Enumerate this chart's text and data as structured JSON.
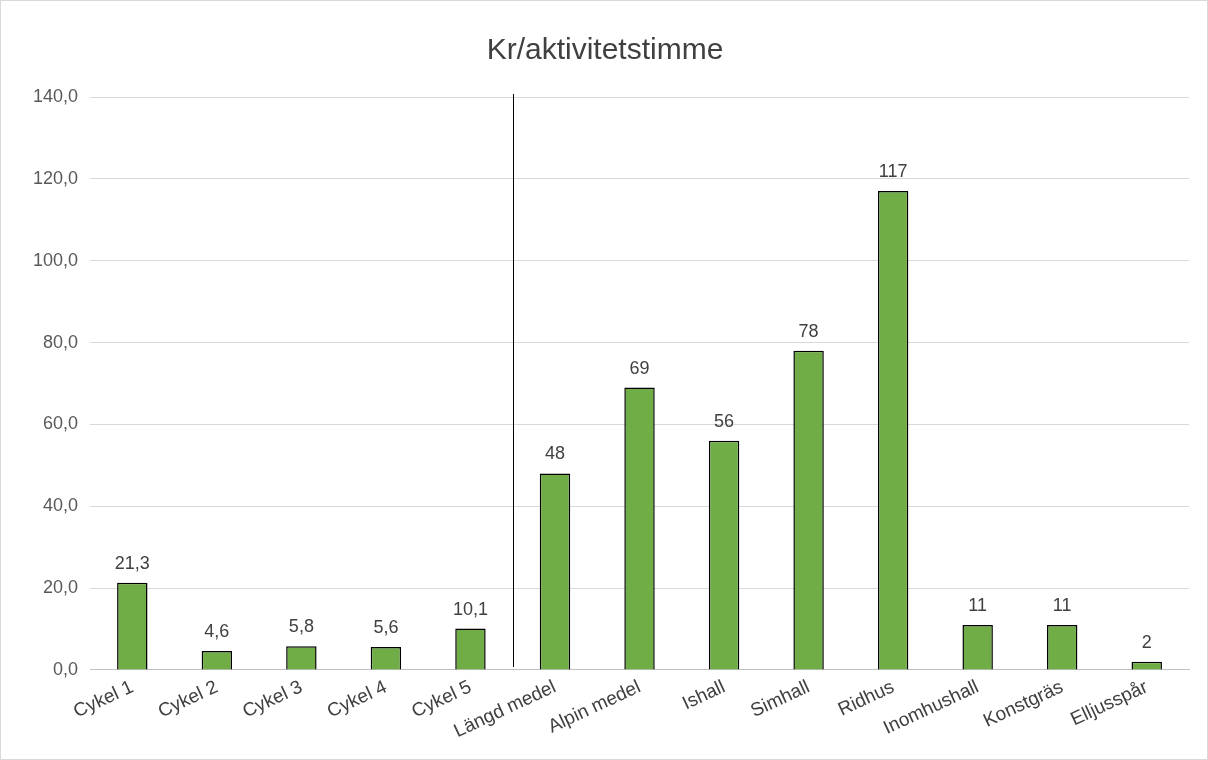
{
  "chart_data": {
    "type": "bar",
    "title": "Kr/aktivitetstimme",
    "categories": [
      "Cykel 1",
      "Cykel 2",
      "Cykel 3",
      "Cykel 4",
      "Cykel 5",
      "Längd medel",
      "Alpin medel",
      "Ishall",
      "Simhall",
      "Ridhus",
      "Inomhushall",
      "Konstgräs",
      "Elljusspår"
    ],
    "values": [
      21.3,
      4.6,
      5.8,
      5.6,
      10.1,
      48,
      69,
      56,
      78,
      117,
      11,
      11,
      2
    ],
    "value_labels": [
      "21,3",
      "4,6",
      "5,8",
      "5,6",
      "10,1",
      "48",
      "69",
      "56",
      "78",
      "117",
      "11",
      "11",
      "2"
    ],
    "color": "#70ad47",
    "ylim": [
      0,
      140
    ],
    "yticks": [
      {
        "value": 0,
        "label": "0,0"
      },
      {
        "value": 20,
        "label": "20,0"
      },
      {
        "value": 40,
        "label": "40,0"
      },
      {
        "value": 60,
        "label": "60,0"
      },
      {
        "value": 80,
        "label": "80,0"
      },
      {
        "value": 100,
        "label": "100,0"
      },
      {
        "value": 120,
        "label": "120,0"
      },
      {
        "value": 140,
        "label": "140,0"
      }
    ],
    "grid": "y"
  }
}
